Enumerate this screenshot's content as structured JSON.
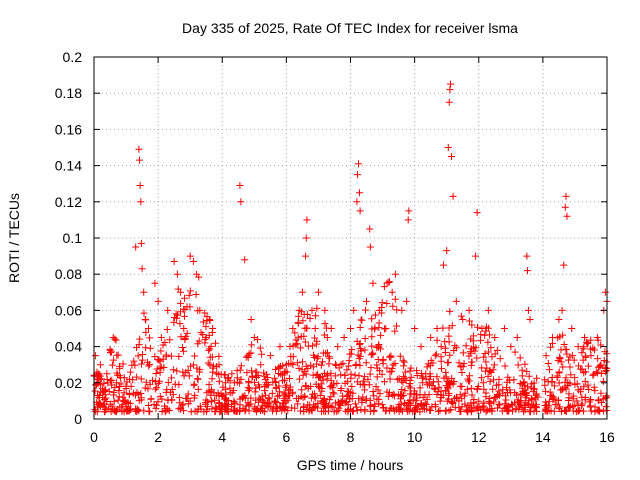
{
  "chart_data": {
    "type": "scatter",
    "title": "Day 335 of 2025, Rate Of TEC Index for receiver lsma",
    "xlabel": "GPS time / hours",
    "ylabel": "ROTI / TECUs",
    "xlim": [
      0,
      16
    ],
    "ylim": [
      0,
      0.2
    ],
    "xticks": [
      0,
      2,
      4,
      6,
      8,
      10,
      12,
      14,
      16
    ],
    "xtick_labels": [
      "0",
      "2",
      "4",
      "6",
      "8",
      "10",
      "12",
      "14",
      "16"
    ],
    "yticks": [
      0,
      0.02,
      0.04,
      0.06,
      0.08,
      0.1,
      0.12,
      0.14,
      0.16,
      0.18,
      0.2
    ],
    "ytick_labels": [
      "0",
      "0.02",
      "0.04",
      "0.06",
      "0.08",
      "0.1",
      "0.12",
      "0.14",
      "0.16",
      "0.18",
      "0.2"
    ],
    "grid": true,
    "marker": "+",
    "marker_color": "#ff0000",
    "gaps_hours": [
      [
        13.85,
        14.05
      ]
    ],
    "series": [
      {
        "name": "ROTI",
        "color": "#ff0000",
        "points": [
          [
            0.05,
            0.035
          ],
          [
            0.1,
            0.02
          ],
          [
            0.2,
            0.03
          ],
          [
            0.3,
            0.015
          ],
          [
            0.4,
            0.025
          ],
          [
            0.5,
            0.038
          ],
          [
            0.6,
            0.045
          ],
          [
            0.7,
            0.02
          ],
          [
            0.8,
            0.028
          ],
          [
            0.9,
            0.012
          ],
          [
            1.3,
            0.095
          ],
          [
            1.4,
            0.149
          ],
          [
            1.42,
            0.143
          ],
          [
            1.44,
            0.129
          ],
          [
            1.46,
            0.12
          ],
          [
            1.48,
            0.097
          ],
          [
            1.5,
            0.083
          ],
          [
            1.55,
            0.07
          ],
          [
            1.6,
            0.055
          ],
          [
            1.7,
            0.05
          ],
          [
            1.9,
            0.075
          ],
          [
            2.0,
            0.065
          ],
          [
            2.1,
            0.045
          ],
          [
            2.3,
            0.06
          ],
          [
            2.5,
            0.087
          ],
          [
            2.6,
            0.08
          ],
          [
            2.7,
            0.07
          ],
          [
            2.8,
            0.05
          ],
          [
            2.9,
            0.062
          ],
          [
            3.0,
            0.09
          ],
          [
            3.1,
            0.087
          ],
          [
            3.2,
            0.08
          ],
          [
            3.3,
            0.06
          ],
          [
            3.5,
            0.045
          ],
          [
            3.6,
            0.055
          ],
          [
            3.7,
            0.05
          ],
          [
            3.9,
            0.03
          ],
          [
            4.1,
            0.02
          ],
          [
            4.3,
            0.025
          ],
          [
            4.55,
            0.129
          ],
          [
            4.58,
            0.12
          ],
          [
            4.7,
            0.088
          ],
          [
            4.9,
            0.055
          ],
          [
            5.0,
            0.045
          ],
          [
            5.2,
            0.03
          ],
          [
            5.5,
            0.035
          ],
          [
            5.8,
            0.04
          ],
          [
            6.0,
            0.03
          ],
          [
            6.2,
            0.05
          ],
          [
            6.4,
            0.06
          ],
          [
            6.5,
            0.07
          ],
          [
            6.6,
            0.09
          ],
          [
            6.62,
            0.1
          ],
          [
            6.64,
            0.11
          ],
          [
            6.8,
            0.06
          ],
          [
            6.9,
            0.05
          ],
          [
            7.0,
            0.07
          ],
          [
            7.2,
            0.06
          ],
          [
            7.4,
            0.05
          ],
          [
            7.6,
            0.04
          ],
          [
            7.8,
            0.045
          ],
          [
            8.0,
            0.05
          ],
          [
            8.1,
            0.06
          ],
          [
            8.2,
            0.12
          ],
          [
            8.22,
            0.135
          ],
          [
            8.25,
            0.141
          ],
          [
            8.28,
            0.125
          ],
          [
            8.3,
            0.115
          ],
          [
            8.5,
            0.065
          ],
          [
            8.6,
            0.105
          ],
          [
            8.62,
            0.095
          ],
          [
            8.7,
            0.075
          ],
          [
            8.9,
            0.06
          ],
          [
            9.1,
            0.05
          ],
          [
            9.3,
            0.07
          ],
          [
            9.4,
            0.08
          ],
          [
            9.6,
            0.06
          ],
          [
            9.75,
            0.065
          ],
          [
            9.8,
            0.11
          ],
          [
            9.82,
            0.115
          ],
          [
            10.0,
            0.05
          ],
          [
            10.2,
            0.04
          ],
          [
            10.5,
            0.045
          ],
          [
            10.7,
            0.05
          ],
          [
            10.9,
            0.085
          ],
          [
            11.0,
            0.093
          ],
          [
            11.05,
            0.15
          ],
          [
            11.08,
            0.175
          ],
          [
            11.1,
            0.182
          ],
          [
            11.12,
            0.185
          ],
          [
            11.15,
            0.145
          ],
          [
            11.2,
            0.123
          ],
          [
            11.3,
            0.065
          ],
          [
            11.5,
            0.055
          ],
          [
            11.7,
            0.06
          ],
          [
            11.9,
            0.09
          ],
          [
            11.95,
            0.114
          ],
          [
            12.1,
            0.05
          ],
          [
            12.3,
            0.06
          ],
          [
            12.5,
            0.045
          ],
          [
            12.8,
            0.05
          ],
          [
            13.0,
            0.04
          ],
          [
            13.2,
            0.045
          ],
          [
            13.5,
            0.09
          ],
          [
            13.52,
            0.082
          ],
          [
            13.55,
            0.06
          ],
          [
            13.6,
            0.055
          ],
          [
            14.1,
            0.035
          ],
          [
            14.3,
            0.045
          ],
          [
            14.5,
            0.055
          ],
          [
            14.6,
            0.06
          ],
          [
            14.65,
            0.085
          ],
          [
            14.7,
            0.117
          ],
          [
            14.72,
            0.123
          ],
          [
            14.75,
            0.112
          ],
          [
            14.9,
            0.05
          ],
          [
            15.1,
            0.04
          ],
          [
            15.3,
            0.045
          ],
          [
            15.5,
            0.035
          ],
          [
            15.7,
            0.045
          ],
          [
            15.9,
            0.06
          ],
          [
            15.95,
            0.07
          ],
          [
            16.0,
            0.065
          ]
        ]
      }
    ]
  }
}
